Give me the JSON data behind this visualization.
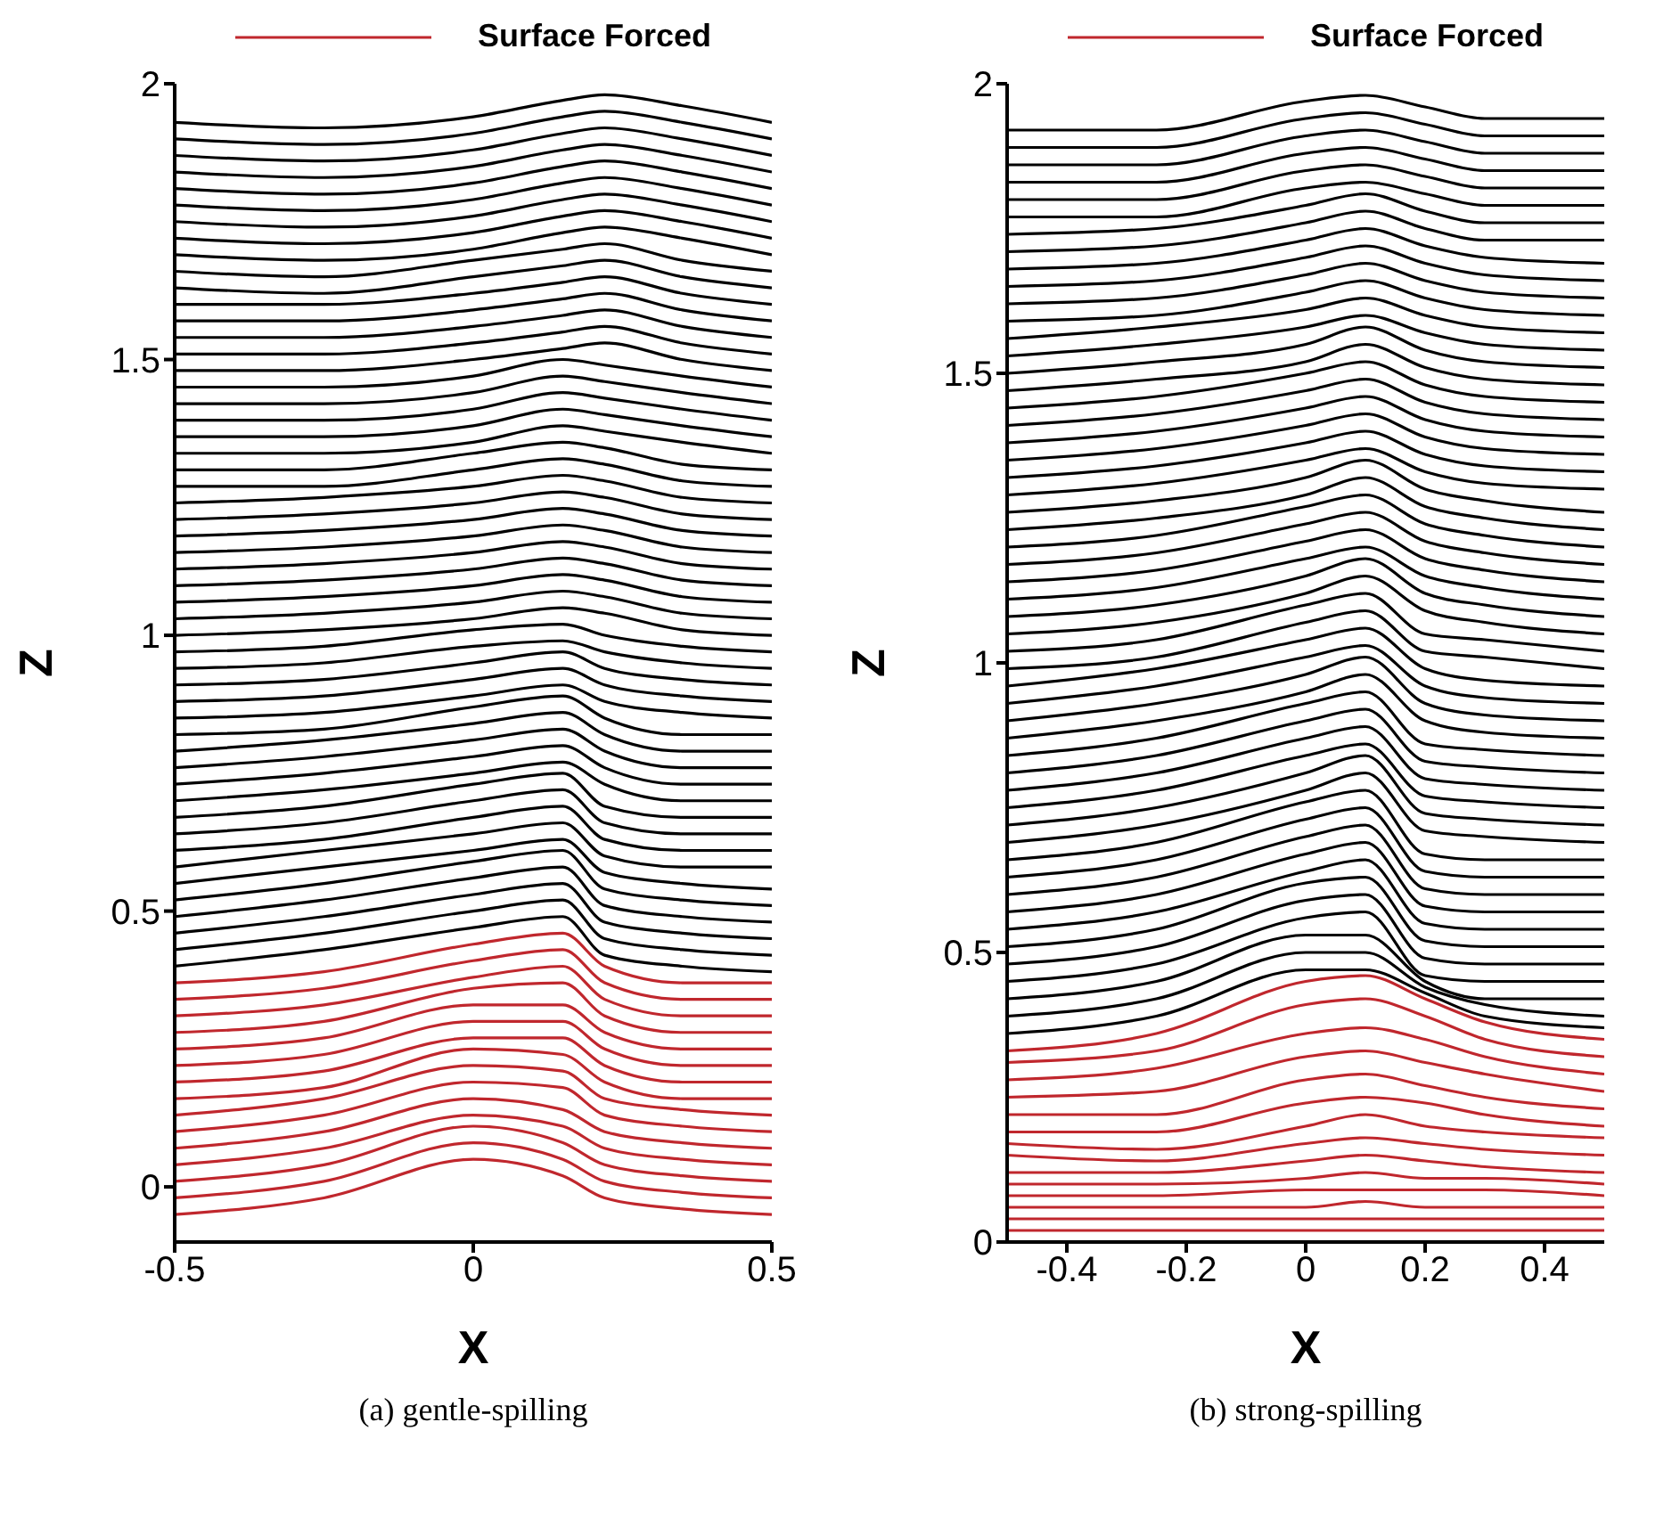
{
  "chart_data": [
    {
      "type": "line",
      "xlabel": "X",
      "ylabel": "Z",
      "xlim": [
        -0.5,
        0.5
      ],
      "xticks": [
        -0.5,
        0,
        0.5
      ],
      "ylim": [
        -0.1,
        2
      ],
      "yticks": [
        0,
        0.5,
        1,
        1.5,
        2
      ],
      "legend": "top",
      "annotations": [
        "(a) gentle-spilling"
      ],
      "x": [
        -0.5,
        -0.25,
        0,
        0.15,
        0.22,
        0.35,
        0.5
      ],
      "series": [
        {
          "name": "Surface Forced",
          "color": "#c0272d",
          "values": [
            -0.05,
            -0.02,
            0.05,
            0.02,
            -0.02,
            -0.04,
            -0.05
          ]
        },
        {
          "color": "#c0272d",
          "values": [
            -0.02,
            0.01,
            0.08,
            0.05,
            0.01,
            -0.01,
            -0.02
          ]
        },
        {
          "color": "#c0272d",
          "values": [
            0.01,
            0.04,
            0.11,
            0.08,
            0.04,
            0.02,
            0.01
          ]
        },
        {
          "color": "#c0272d",
          "values": [
            0.04,
            0.07,
            0.13,
            0.11,
            0.07,
            0.05,
            0.04
          ]
        },
        {
          "color": "#c0272d",
          "values": [
            0.07,
            0.1,
            0.16,
            0.14,
            0.1,
            0.08,
            0.07
          ]
        },
        {
          "color": "#c0272d",
          "values": [
            0.1,
            0.13,
            0.19,
            0.18,
            0.13,
            0.11,
            0.1
          ]
        },
        {
          "color": "#c0272d",
          "values": [
            0.13,
            0.16,
            0.22,
            0.21,
            0.16,
            0.14,
            0.13
          ]
        },
        {
          "color": "#c0272d",
          "values": [
            0.16,
            0.18,
            0.25,
            0.24,
            0.19,
            0.16,
            0.16
          ]
        },
        {
          "color": "#c0272d",
          "values": [
            0.19,
            0.21,
            0.27,
            0.27,
            0.22,
            0.19,
            0.19
          ]
        },
        {
          "color": "#c0272d",
          "values": [
            0.22,
            0.24,
            0.3,
            0.3,
            0.25,
            0.22,
            0.22
          ]
        },
        {
          "color": "#c0272d",
          "values": [
            0.25,
            0.27,
            0.33,
            0.33,
            0.28,
            0.25,
            0.25
          ]
        },
        {
          "color": "#c0272d",
          "values": [
            0.28,
            0.3,
            0.36,
            0.37,
            0.31,
            0.28,
            0.28
          ]
        },
        {
          "color": "#c0272d",
          "values": [
            0.31,
            0.33,
            0.38,
            0.4,
            0.34,
            0.31,
            0.31
          ]
        },
        {
          "color": "#c0272d",
          "values": [
            0.34,
            0.36,
            0.41,
            0.43,
            0.37,
            0.34,
            0.34
          ]
        },
        {
          "color": "#c0272d",
          "values": [
            0.37,
            0.39,
            0.44,
            0.46,
            0.4,
            0.37,
            0.37
          ]
        },
        {
          "color": "#000000",
          "values": [
            0.4,
            0.43,
            0.47,
            0.49,
            0.42,
            0.4,
            0.39
          ]
        },
        {
          "color": "#000000",
          "values": [
            0.43,
            0.46,
            0.5,
            0.52,
            0.45,
            0.43,
            0.42
          ]
        },
        {
          "color": "#000000",
          "values": [
            0.46,
            0.49,
            0.53,
            0.55,
            0.48,
            0.46,
            0.45
          ]
        },
        {
          "color": "#000000",
          "values": [
            0.49,
            0.52,
            0.56,
            0.58,
            0.51,
            0.49,
            0.48
          ]
        },
        {
          "color": "#000000",
          "values": [
            0.52,
            0.55,
            0.59,
            0.61,
            0.54,
            0.52,
            0.51
          ]
        },
        {
          "color": "#000000",
          "values": [
            0.55,
            0.58,
            0.61,
            0.63,
            0.57,
            0.55,
            0.54
          ]
        },
        {
          "color": "#000000",
          "values": [
            0.58,
            0.61,
            0.64,
            0.66,
            0.6,
            0.58,
            0.58
          ]
        },
        {
          "color": "#000000",
          "values": [
            0.61,
            0.63,
            0.67,
            0.69,
            0.63,
            0.61,
            0.61
          ]
        },
        {
          "color": "#000000",
          "values": [
            0.64,
            0.66,
            0.7,
            0.72,
            0.66,
            0.64,
            0.64
          ]
        },
        {
          "color": "#000000",
          "values": [
            0.67,
            0.69,
            0.73,
            0.75,
            0.69,
            0.67,
            0.67
          ]
        },
        {
          "color": "#000000",
          "values": [
            0.7,
            0.72,
            0.75,
            0.77,
            0.73,
            0.7,
            0.7
          ]
        },
        {
          "color": "#000000",
          "values": [
            0.73,
            0.75,
            0.78,
            0.8,
            0.76,
            0.73,
            0.73
          ]
        },
        {
          "color": "#000000",
          "values": [
            0.76,
            0.78,
            0.81,
            0.83,
            0.79,
            0.76,
            0.76
          ]
        },
        {
          "color": "#000000",
          "values": [
            0.79,
            0.81,
            0.84,
            0.86,
            0.82,
            0.79,
            0.79
          ]
        },
        {
          "color": "#000000",
          "values": [
            0.82,
            0.83,
            0.87,
            0.89,
            0.85,
            0.82,
            0.82
          ]
        },
        {
          "color": "#000000",
          "values": [
            0.85,
            0.86,
            0.89,
            0.91,
            0.88,
            0.86,
            0.85
          ]
        },
        {
          "color": "#000000",
          "values": [
            0.88,
            0.89,
            0.92,
            0.94,
            0.91,
            0.89,
            0.88
          ]
        },
        {
          "color": "#000000",
          "values": [
            0.91,
            0.92,
            0.95,
            0.97,
            0.94,
            0.92,
            0.91
          ]
        },
        {
          "color": "#000000",
          "values": [
            0.94,
            0.95,
            0.98,
            0.99,
            0.97,
            0.95,
            0.94
          ]
        },
        {
          "color": "#000000",
          "values": [
            0.97,
            0.98,
            1.01,
            1.02,
            1.0,
            0.98,
            0.97
          ]
        },
        {
          "color": "#000000",
          "values": [
            1.0,
            1.01,
            1.03,
            1.05,
            1.04,
            1.01,
            1.0
          ]
        },
        {
          "color": "#000000",
          "values": [
            1.03,
            1.04,
            1.06,
            1.08,
            1.07,
            1.04,
            1.03
          ]
        },
        {
          "color": "#000000",
          "values": [
            1.06,
            1.07,
            1.09,
            1.11,
            1.1,
            1.07,
            1.06
          ]
        },
        {
          "color": "#000000",
          "values": [
            1.09,
            1.1,
            1.12,
            1.14,
            1.13,
            1.1,
            1.09
          ]
        },
        {
          "color": "#000000",
          "values": [
            1.12,
            1.13,
            1.15,
            1.17,
            1.16,
            1.13,
            1.12
          ]
        },
        {
          "color": "#000000",
          "values": [
            1.15,
            1.16,
            1.18,
            1.2,
            1.19,
            1.16,
            1.15
          ]
        },
        {
          "color": "#000000",
          "values": [
            1.18,
            1.19,
            1.21,
            1.23,
            1.22,
            1.19,
            1.18
          ]
        },
        {
          "color": "#000000",
          "values": [
            1.21,
            1.22,
            1.24,
            1.26,
            1.25,
            1.22,
            1.21
          ]
        },
        {
          "color": "#000000",
          "values": [
            1.24,
            1.25,
            1.27,
            1.29,
            1.28,
            1.25,
            1.24
          ]
        },
        {
          "color": "#000000",
          "values": [
            1.27,
            1.27,
            1.3,
            1.32,
            1.31,
            1.28,
            1.27
          ]
        },
        {
          "color": "#000000",
          "values": [
            1.3,
            1.3,
            1.33,
            1.35,
            1.34,
            1.31,
            1.3
          ]
        },
        {
          "color": "#000000",
          "values": [
            1.33,
            1.33,
            1.35,
            1.38,
            1.37,
            1.35,
            1.33
          ]
        },
        {
          "color": "#000000",
          "values": [
            1.36,
            1.36,
            1.38,
            1.41,
            1.4,
            1.38,
            1.36
          ]
        },
        {
          "color": "#000000",
          "values": [
            1.39,
            1.39,
            1.41,
            1.44,
            1.43,
            1.41,
            1.39
          ]
        },
        {
          "color": "#000000",
          "values": [
            1.42,
            1.42,
            1.44,
            1.47,
            1.46,
            1.44,
            1.42
          ]
        },
        {
          "color": "#000000",
          "values": [
            1.45,
            1.45,
            1.47,
            1.5,
            1.49,
            1.47,
            1.45
          ]
        },
        {
          "color": "#000000",
          "values": [
            1.48,
            1.48,
            1.5,
            1.52,
            1.53,
            1.5,
            1.48
          ]
        },
        {
          "color": "#000000",
          "values": [
            1.51,
            1.51,
            1.53,
            1.55,
            1.56,
            1.53,
            1.51
          ]
        },
        {
          "color": "#000000",
          "values": [
            1.54,
            1.54,
            1.56,
            1.58,
            1.59,
            1.56,
            1.54
          ]
        },
        {
          "color": "#000000",
          "values": [
            1.57,
            1.57,
            1.59,
            1.61,
            1.62,
            1.59,
            1.57
          ]
        },
        {
          "color": "#000000",
          "values": [
            1.6,
            1.6,
            1.62,
            1.64,
            1.65,
            1.62,
            1.6
          ]
        },
        {
          "color": "#000000",
          "values": [
            1.63,
            1.62,
            1.65,
            1.67,
            1.68,
            1.65,
            1.63
          ]
        },
        {
          "color": "#000000",
          "values": [
            1.66,
            1.65,
            1.68,
            1.7,
            1.71,
            1.68,
            1.66
          ]
        },
        {
          "color": "#000000",
          "values": [
            1.69,
            1.68,
            1.7,
            1.73,
            1.74,
            1.72,
            1.69
          ]
        },
        {
          "color": "#000000",
          "values": [
            1.72,
            1.71,
            1.73,
            1.76,
            1.77,
            1.75,
            1.72
          ]
        },
        {
          "color": "#000000",
          "values": [
            1.75,
            1.74,
            1.76,
            1.79,
            1.8,
            1.78,
            1.75
          ]
        },
        {
          "color": "#000000",
          "values": [
            1.78,
            1.77,
            1.79,
            1.82,
            1.83,
            1.81,
            1.78
          ]
        },
        {
          "color": "#000000",
          "values": [
            1.81,
            1.8,
            1.82,
            1.85,
            1.86,
            1.84,
            1.81
          ]
        },
        {
          "color": "#000000",
          "values": [
            1.84,
            1.83,
            1.85,
            1.88,
            1.89,
            1.87,
            1.84
          ]
        },
        {
          "color": "#000000",
          "values": [
            1.87,
            1.86,
            1.88,
            1.91,
            1.92,
            1.9,
            1.87
          ]
        },
        {
          "color": "#000000",
          "values": [
            1.9,
            1.89,
            1.91,
            1.94,
            1.95,
            1.93,
            1.9
          ]
        },
        {
          "color": "#000000",
          "values": [
            1.93,
            1.92,
            1.94,
            1.97,
            1.98,
            1.96,
            1.93
          ]
        }
      ]
    },
    {
      "type": "line",
      "xlabel": "X",
      "ylabel": "Z",
      "xlim": [
        -0.5,
        0.5
      ],
      "xticks": [
        -0.4,
        -0.2,
        0,
        0.2,
        0.4
      ],
      "ylim": [
        0,
        2
      ],
      "yticks": [
        0,
        0.5,
        1,
        1.5,
        2
      ],
      "legend": "top",
      "annotations": [
        "(b) strong-spilling"
      ],
      "x": [
        -0.5,
        -0.25,
        0,
        0.1,
        0.2,
        0.3,
        0.5
      ],
      "series": [
        {
          "name": "Surface Forced",
          "color": "#c0272d",
          "values": [
            0.02,
            0.02,
            0.02,
            0.02,
            0.02,
            0.02,
            0.02
          ]
        },
        {
          "color": "#c0272d",
          "values": [
            0.04,
            0.04,
            0.04,
            0.04,
            0.04,
            0.04,
            0.04
          ]
        },
        {
          "color": "#c0272d",
          "values": [
            0.06,
            0.06,
            0.06,
            0.07,
            0.06,
            0.06,
            0.06
          ]
        },
        {
          "color": "#c0272d",
          "values": [
            0.08,
            0.08,
            0.09,
            0.09,
            0.09,
            0.09,
            0.08
          ]
        },
        {
          "color": "#c0272d",
          "values": [
            0.1,
            0.1,
            0.11,
            0.12,
            0.11,
            0.11,
            0.1
          ]
        },
        {
          "color": "#c0272d",
          "values": [
            0.12,
            0.12,
            0.14,
            0.15,
            0.14,
            0.13,
            0.12
          ]
        },
        {
          "color": "#c0272d",
          "values": [
            0.15,
            0.14,
            0.17,
            0.18,
            0.17,
            0.16,
            0.15
          ]
        },
        {
          "color": "#c0272d",
          "values": [
            0.17,
            0.16,
            0.2,
            0.22,
            0.2,
            0.19,
            0.18
          ]
        },
        {
          "color": "#c0272d",
          "values": [
            0.19,
            0.19,
            0.24,
            0.25,
            0.24,
            0.22,
            0.2
          ]
        },
        {
          "color": "#c0272d",
          "values": [
            0.22,
            0.22,
            0.28,
            0.29,
            0.27,
            0.25,
            0.23
          ]
        },
        {
          "color": "#c0272d",
          "values": [
            0.25,
            0.26,
            0.32,
            0.33,
            0.31,
            0.29,
            0.26
          ]
        },
        {
          "color": "#c0272d",
          "values": [
            0.28,
            0.3,
            0.36,
            0.37,
            0.35,
            0.32,
            0.29
          ]
        },
        {
          "color": "#c0272d",
          "values": [
            0.31,
            0.33,
            0.41,
            0.42,
            0.39,
            0.35,
            0.32
          ]
        },
        {
          "color": "#c0272d",
          "values": [
            0.33,
            0.36,
            0.45,
            0.46,
            0.42,
            0.38,
            0.35
          ]
        },
        {
          "color": "#000000",
          "values": [
            0.36,
            0.39,
            0.47,
            0.47,
            0.43,
            0.39,
            0.37
          ]
        },
        {
          "color": "#000000",
          "values": [
            0.39,
            0.42,
            0.5,
            0.5,
            0.44,
            0.41,
            0.39
          ]
        },
        {
          "color": "#000000",
          "values": [
            0.42,
            0.45,
            0.53,
            0.53,
            0.45,
            0.42,
            0.42
          ]
        },
        {
          "color": "#000000",
          "values": [
            0.45,
            0.48,
            0.56,
            0.57,
            0.46,
            0.45,
            0.45
          ]
        },
        {
          "color": "#000000",
          "values": [
            0.48,
            0.51,
            0.59,
            0.6,
            0.49,
            0.48,
            0.48
          ]
        },
        {
          "color": "#000000",
          "values": [
            0.51,
            0.54,
            0.62,
            0.63,
            0.52,
            0.51,
            0.51
          ]
        },
        {
          "color": "#000000",
          "values": [
            0.54,
            0.57,
            0.64,
            0.66,
            0.55,
            0.54,
            0.54
          ]
        },
        {
          "color": "#000000",
          "values": [
            0.57,
            0.6,
            0.67,
            0.69,
            0.58,
            0.57,
            0.57
          ]
        },
        {
          "color": "#000000",
          "values": [
            0.6,
            0.63,
            0.7,
            0.72,
            0.61,
            0.6,
            0.6
          ]
        },
        {
          "color": "#000000",
          "values": [
            0.63,
            0.66,
            0.73,
            0.75,
            0.64,
            0.63,
            0.63
          ]
        },
        {
          "color": "#000000",
          "values": [
            0.66,
            0.69,
            0.76,
            0.78,
            0.67,
            0.66,
            0.66
          ]
        },
        {
          "color": "#000000",
          "values": [
            0.69,
            0.72,
            0.78,
            0.81,
            0.71,
            0.7,
            0.69
          ]
        },
        {
          "color": "#000000",
          "values": [
            0.72,
            0.75,
            0.81,
            0.84,
            0.74,
            0.73,
            0.72
          ]
        },
        {
          "color": "#000000",
          "values": [
            0.75,
            0.78,
            0.84,
            0.86,
            0.77,
            0.76,
            0.75
          ]
        },
        {
          "color": "#000000",
          "values": [
            0.78,
            0.81,
            0.87,
            0.89,
            0.8,
            0.79,
            0.78
          ]
        },
        {
          "color": "#000000",
          "values": [
            0.81,
            0.84,
            0.9,
            0.92,
            0.83,
            0.82,
            0.81
          ]
        },
        {
          "color": "#000000",
          "values": [
            0.84,
            0.87,
            0.93,
            0.95,
            0.86,
            0.85,
            0.84
          ]
        },
        {
          "color": "#000000",
          "values": [
            0.87,
            0.9,
            0.95,
            0.98,
            0.9,
            0.88,
            0.87
          ]
        },
        {
          "color": "#000000",
          "values": [
            0.9,
            0.93,
            0.98,
            1.01,
            0.93,
            0.91,
            0.9
          ]
        },
        {
          "color": "#000000",
          "values": [
            0.93,
            0.96,
            1.01,
            1.03,
            0.96,
            0.94,
            0.93
          ]
        },
        {
          "color": "#000000",
          "values": [
            0.96,
            0.99,
            1.04,
            1.06,
            0.99,
            0.97,
            0.96
          ]
        },
        {
          "color": "#000000",
          "values": [
            0.99,
            1.01,
            1.07,
            1.09,
            1.02,
            1.01,
            0.99
          ]
        },
        {
          "color": "#000000",
          "values": [
            1.02,
            1.04,
            1.1,
            1.12,
            1.05,
            1.04,
            1.02
          ]
        },
        {
          "color": "#000000",
          "values": [
            1.05,
            1.07,
            1.12,
            1.15,
            1.09,
            1.07,
            1.05
          ]
        },
        {
          "color": "#000000",
          "values": [
            1.08,
            1.1,
            1.15,
            1.18,
            1.12,
            1.1,
            1.08
          ]
        },
        {
          "color": "#000000",
          "values": [
            1.11,
            1.13,
            1.18,
            1.2,
            1.15,
            1.13,
            1.11
          ]
        },
        {
          "color": "#000000",
          "values": [
            1.14,
            1.16,
            1.21,
            1.23,
            1.18,
            1.16,
            1.14
          ]
        },
        {
          "color": "#000000",
          "values": [
            1.17,
            1.19,
            1.24,
            1.26,
            1.21,
            1.19,
            1.17
          ]
        },
        {
          "color": "#000000",
          "values": [
            1.2,
            1.22,
            1.27,
            1.29,
            1.24,
            1.22,
            1.2
          ]
        },
        {
          "color": "#000000",
          "values": [
            1.23,
            1.25,
            1.29,
            1.32,
            1.27,
            1.25,
            1.23
          ]
        },
        {
          "color": "#000000",
          "values": [
            1.26,
            1.28,
            1.32,
            1.35,
            1.3,
            1.28,
            1.26
          ]
        },
        {
          "color": "#000000",
          "values": [
            1.29,
            1.31,
            1.35,
            1.37,
            1.33,
            1.31,
            1.3
          ]
        },
        {
          "color": "#000000",
          "values": [
            1.32,
            1.34,
            1.38,
            1.4,
            1.36,
            1.34,
            1.33
          ]
        },
        {
          "color": "#000000",
          "values": [
            1.35,
            1.37,
            1.41,
            1.43,
            1.39,
            1.37,
            1.36
          ]
        },
        {
          "color": "#000000",
          "values": [
            1.38,
            1.4,
            1.44,
            1.46,
            1.42,
            1.4,
            1.39
          ]
        },
        {
          "color": "#000000",
          "values": [
            1.41,
            1.43,
            1.47,
            1.49,
            1.45,
            1.43,
            1.42
          ]
        },
        {
          "color": "#000000",
          "values": [
            1.44,
            1.46,
            1.5,
            1.52,
            1.48,
            1.46,
            1.45
          ]
        },
        {
          "color": "#000000",
          "values": [
            1.47,
            1.49,
            1.52,
            1.55,
            1.51,
            1.49,
            1.48
          ]
        },
        {
          "color": "#000000",
          "values": [
            1.5,
            1.52,
            1.55,
            1.58,
            1.54,
            1.52,
            1.51
          ]
        },
        {
          "color": "#000000",
          "values": [
            1.53,
            1.55,
            1.58,
            1.6,
            1.57,
            1.55,
            1.54
          ]
        },
        {
          "color": "#000000",
          "values": [
            1.56,
            1.58,
            1.61,
            1.63,
            1.6,
            1.58,
            1.57
          ]
        },
        {
          "color": "#000000",
          "values": [
            1.59,
            1.6,
            1.64,
            1.66,
            1.63,
            1.61,
            1.6
          ]
        },
        {
          "color": "#000000",
          "values": [
            1.62,
            1.63,
            1.67,
            1.69,
            1.66,
            1.64,
            1.63
          ]
        },
        {
          "color": "#000000",
          "values": [
            1.65,
            1.66,
            1.7,
            1.72,
            1.69,
            1.67,
            1.66
          ]
        },
        {
          "color": "#000000",
          "values": [
            1.68,
            1.69,
            1.73,
            1.75,
            1.72,
            1.7,
            1.69
          ]
        },
        {
          "color": "#000000",
          "values": [
            1.71,
            1.72,
            1.76,
            1.78,
            1.75,
            1.73,
            1.73
          ]
        },
        {
          "color": "#000000",
          "values": [
            1.74,
            1.75,
            1.79,
            1.81,
            1.78,
            1.76,
            1.76
          ]
        },
        {
          "color": "#000000",
          "values": [
            1.77,
            1.77,
            1.82,
            1.83,
            1.81,
            1.79,
            1.79
          ]
        },
        {
          "color": "#000000",
          "values": [
            1.8,
            1.8,
            1.85,
            1.86,
            1.84,
            1.82,
            1.82
          ]
        },
        {
          "color": "#000000",
          "values": [
            1.83,
            1.83,
            1.88,
            1.89,
            1.87,
            1.85,
            1.85
          ]
        },
        {
          "color": "#000000",
          "values": [
            1.86,
            1.86,
            1.91,
            1.92,
            1.9,
            1.88,
            1.88
          ]
        },
        {
          "color": "#000000",
          "values": [
            1.89,
            1.89,
            1.94,
            1.95,
            1.93,
            1.91,
            1.91
          ]
        },
        {
          "color": "#000000",
          "values": [
            1.92,
            1.92,
            1.97,
            1.98,
            1.96,
            1.94,
            1.94
          ]
        }
      ]
    }
  ]
}
